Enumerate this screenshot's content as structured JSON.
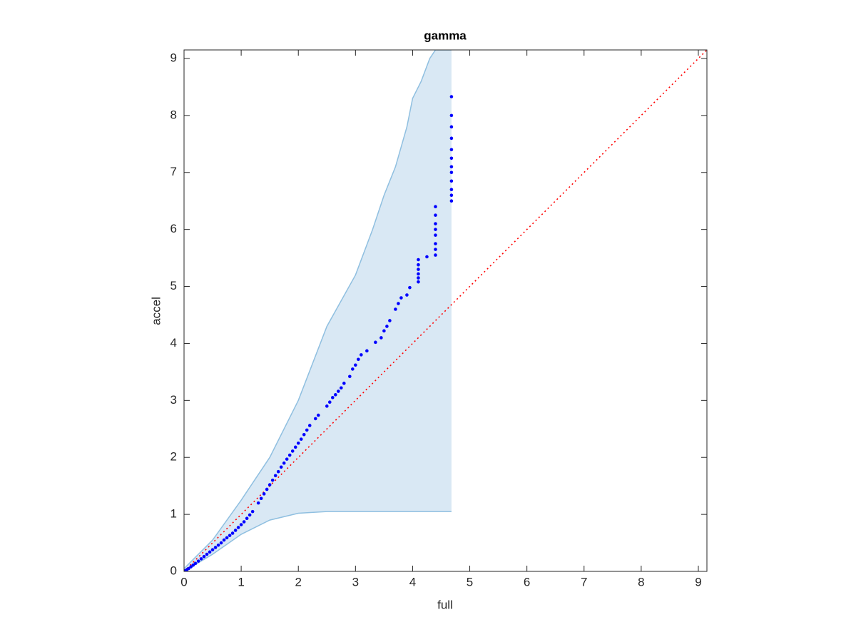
{
  "chart_data": {
    "type": "scatter",
    "title": "gamma",
    "x_label": "full",
    "y_label": "accel",
    "xlim": [
      0,
      9.15
    ],
    "ylim": [
      0,
      9.15
    ],
    "xticks": [
      0,
      1,
      2,
      3,
      4,
      5,
      6,
      7,
      8,
      9
    ],
    "yticks": [
      0,
      1,
      2,
      3,
      4,
      5,
      6,
      7,
      8,
      9
    ],
    "band": {
      "color": "#d9e8f4",
      "line_color": "#8fbfe0",
      "x": [
        0,
        0.5,
        1,
        1.5,
        2,
        2.5,
        3,
        3.3,
        3.5,
        3.7,
        3.9,
        4.0,
        4.15,
        4.3,
        4.4,
        4.68
      ],
      "upper": [
        0.05,
        0.55,
        1.25,
        2.0,
        3.0,
        4.3,
        5.2,
        6.0,
        6.6,
        7.1,
        7.8,
        8.3,
        8.6,
        9.0,
        9.15,
        9.15
      ],
      "lower": [
        0,
        0.3,
        0.65,
        0.9,
        1.02,
        1.05,
        1.05,
        1.05,
        1.05,
        1.05,
        1.05,
        1.05,
        1.05,
        1.05,
        1.05,
        1.05
      ]
    },
    "reference": {
      "color": "#ff0000",
      "x": [
        0,
        9.15
      ],
      "values": [
        0,
        9.15
      ]
    },
    "series": [
      {
        "color": "#0000ff",
        "x": [
          0.02,
          0.05,
          0.08,
          0.12,
          0.16,
          0.2,
          0.25,
          0.3,
          0.35,
          0.4,
          0.45,
          0.5,
          0.55,
          0.6,
          0.65,
          0.7,
          0.75,
          0.8,
          0.85,
          0.9,
          0.95,
          1.0,
          1.05,
          1.1,
          1.15,
          1.2,
          1.3,
          1.35,
          1.4,
          1.45,
          1.5,
          1.55,
          1.6,
          1.65,
          1.7,
          1.75,
          1.8,
          1.85,
          1.9,
          1.95,
          2.0,
          2.05,
          2.1,
          2.15,
          2.2,
          2.3,
          2.35,
          2.5,
          2.55,
          2.6,
          2.65,
          2.7,
          2.75,
          2.8,
          2.9,
          2.95,
          3.0,
          3.05,
          3.1,
          3.2,
          3.35,
          3.45,
          3.5,
          3.55,
          3.6,
          3.7,
          3.75,
          3.8,
          3.9,
          3.95,
          4.1,
          4.1,
          4.1,
          4.1,
          4.1,
          4.1,
          4.25,
          4.4,
          4.4,
          4.4,
          4.4,
          4.4,
          4.4,
          4.4,
          4.4,
          4.68,
          4.68,
          4.68,
          4.68,
          4.68,
          4.68,
          4.68,
          4.68,
          4.68,
          4.68,
          4.68,
          4.68
        ],
        "values": [
          0.01,
          0.03,
          0.05,
          0.08,
          0.11,
          0.14,
          0.18,
          0.22,
          0.26,
          0.3,
          0.34,
          0.38,
          0.42,
          0.46,
          0.5,
          0.55,
          0.59,
          0.63,
          0.67,
          0.72,
          0.77,
          0.82,
          0.87,
          0.93,
          0.99,
          1.05,
          1.2,
          1.28,
          1.36,
          1.44,
          1.52,
          1.6,
          1.68,
          1.75,
          1.83,
          1.9,
          1.97,
          2.04,
          2.11,
          2.18,
          2.25,
          2.32,
          2.4,
          2.48,
          2.56,
          2.68,
          2.74,
          2.9,
          2.97,
          3.05,
          3.1,
          3.16,
          3.22,
          3.3,
          3.42,
          3.55,
          3.62,
          3.72,
          3.8,
          3.87,
          4.02,
          4.1,
          4.22,
          4.3,
          4.4,
          4.6,
          4.7,
          4.8,
          4.85,
          4.98,
          5.08,
          5.15,
          5.22,
          5.3,
          5.38,
          5.47,
          5.52,
          5.55,
          5.65,
          5.75,
          5.9,
          6.0,
          6.1,
          6.25,
          6.4,
          6.5,
          6.6,
          6.7,
          6.85,
          7.0,
          7.1,
          7.25,
          7.4,
          7.6,
          7.8,
          8.0,
          8.33
        ]
      }
    ]
  }
}
